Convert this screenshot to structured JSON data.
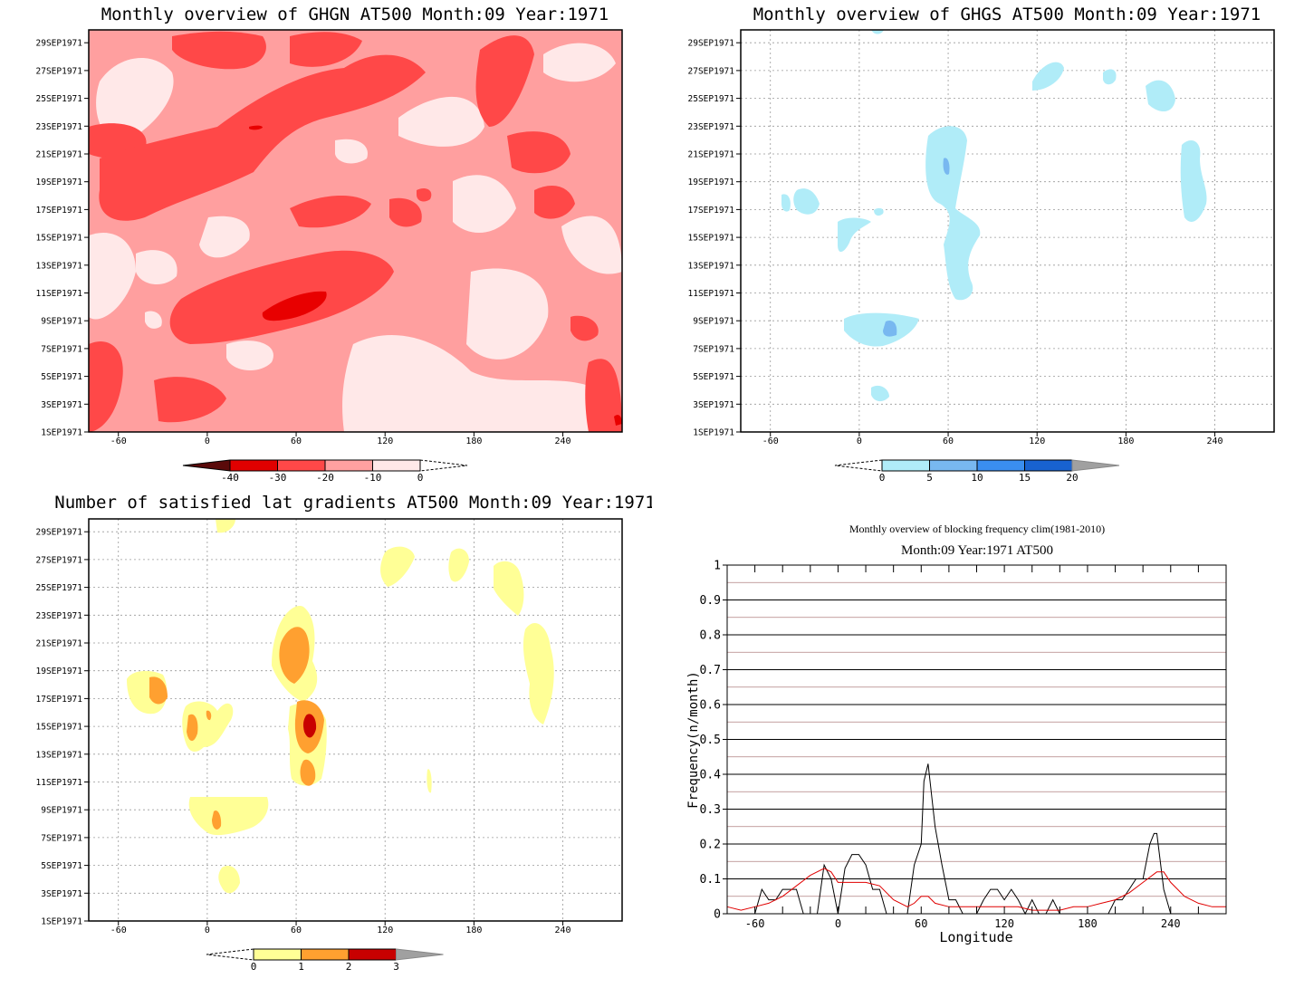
{
  "panels": {
    "ghgn": {
      "title": "Monthly overview of GHGN AT500 Month:09 Year:1971",
      "colorbar_labels": [
        "-40",
        "-30",
        "-20",
        "-10",
        "0"
      ],
      "colors": [
        "#5a0a0a",
        "#e00000",
        "#ff4848",
        "#ffa0a0",
        "#ffe8e8"
      ],
      "background_color": "#ff9f9f"
    },
    "ghgs": {
      "title": "Monthly overview of GHGS AT500 Month:09 Year:1971",
      "colorbar_labels": [
        "0",
        "5",
        "10",
        "15",
        "20"
      ],
      "colors": [
        "#b0ecf8",
        "#78b8f0",
        "#3a8ef0",
        "#1862d0",
        "#a0a0a0"
      ]
    },
    "grad": {
      "title": "Number of satisfied lat gradients AT500 Month:09 Year:1971",
      "colorbar_labels": [
        "0",
        "1",
        "2",
        "3"
      ],
      "colors": [
        "#ffff96",
        "#ffa030",
        "#c80000",
        "#a0a0a0"
      ]
    },
    "freq": {
      "title": "Monthly overview of blocking frequency clim(1981-2010)",
      "subtitle": "Month:09 Year:1971  AT500",
      "xlabel": "Longitude",
      "ylabel": "Frequency(n/month)"
    }
  },
  "axes": {
    "x_ticks": [
      "-60",
      "0",
      "60",
      "120",
      "180",
      "240"
    ],
    "y_ticks": [
      "1SEP1971",
      "3SEP1971",
      "5SEP1971",
      "7SEP1971",
      "9SEP1971",
      "11SEP1971",
      "13SEP1971",
      "15SEP1971",
      "17SEP1971",
      "19SEP1971",
      "21SEP1971",
      "23SEP1971",
      "25SEP1971",
      "27SEP1971",
      "29SEP1971"
    ]
  },
  "chart_data": [
    {
      "type": "heatmap",
      "title": "Monthly overview of GHGN AT500 Month:09 Year:1971",
      "xlim": [
        -80,
        280
      ],
      "x_ticks": [
        -60,
        0,
        60,
        120,
        180,
        240
      ],
      "y_ticks": [
        "1SEP1971",
        "3SEP1971",
        "5SEP1971",
        "7SEP1971",
        "9SEP1971",
        "11SEP1971",
        "13SEP1971",
        "15SEP1971",
        "17SEP1971",
        "19SEP1971",
        "21SEP1971",
        "23SEP1971",
        "25SEP1971",
        "27SEP1971",
        "29SEP1971"
      ],
      "levels": [
        -40,
        -30,
        -20,
        -10,
        0
      ]
    },
    {
      "type": "heatmap",
      "title": "Monthly overview of GHGS AT500 Month:09 Year:1971",
      "xlim": [
        -80,
        280
      ],
      "x_ticks": [
        -60,
        0,
        60,
        120,
        180,
        240
      ],
      "levels": [
        0,
        5,
        10,
        15,
        20
      ]
    },
    {
      "type": "heatmap",
      "title": "Number of satisfied lat gradients AT500 Month:09 Year:1971",
      "xlim": [
        -80,
        280
      ],
      "x_ticks": [
        -60,
        0,
        60,
        120,
        180,
        240
      ],
      "levels": [
        0,
        1,
        2,
        3
      ]
    },
    {
      "type": "line",
      "title": "Monthly overview of blocking frequency clim(1981-2010)",
      "subtitle": "Month:09 Year:1971  AT500",
      "xlabel": "Longitude",
      "ylabel": "Frequency(n/month)",
      "xlim": [
        -80,
        280
      ],
      "ylim": [
        0,
        1
      ],
      "x_ticks": [
        -60,
        0,
        60,
        120,
        180,
        240
      ],
      "y_ticks": [
        "0",
        "0.1",
        "0.2",
        "0.3",
        "0.4",
        "0.5",
        "0.6",
        "0.7",
        "0.8",
        "0.9",
        "1"
      ],
      "grid": true,
      "series": [
        {
          "color": "#000000",
          "x": [
            -80,
            -60,
            -55,
            -50,
            -45,
            -40,
            -30,
            -25,
            -20,
            -15,
            -10,
            -5,
            0,
            5,
            10,
            15,
            20,
            25,
            30,
            35,
            40,
            45,
            50,
            55,
            60,
            62,
            65,
            70,
            75,
            80,
            85,
            90,
            95,
            100,
            105,
            110,
            115,
            120,
            125,
            130,
            135,
            140,
            145,
            150,
            155,
            160,
            165,
            170,
            175,
            180,
            185,
            190,
            195,
            200,
            205,
            210,
            215,
            220,
            225,
            228,
            230,
            235,
            240,
            245,
            250,
            260,
            270,
            280
          ],
          "y": [
            0,
            0,
            0.07,
            0.04,
            0.04,
            0.07,
            0.07,
            0,
            0,
            0,
            0.14,
            0.1,
            0,
            0.13,
            0.17,
            0.17,
            0.14,
            0.07,
            0.07,
            0,
            0,
            0,
            0,
            0.14,
            0.2,
            0.38,
            0.43,
            0.25,
            0.14,
            0.04,
            0.04,
            0,
            0,
            0,
            0.04,
            0.07,
            0.07,
            0.04,
            0.07,
            0.04,
            0,
            0.04,
            0,
            0,
            0.04,
            0,
            0,
            0,
            0,
            0,
            0,
            0,
            0,
            0.04,
            0.04,
            0.07,
            0.1,
            0.1,
            0.2,
            0.23,
            0.23,
            0.07,
            0,
            0,
            0,
            0,
            0,
            0
          ]
        },
        {
          "color": "#e00000",
          "x": [
            -80,
            -70,
            -60,
            -50,
            -40,
            -30,
            -20,
            -10,
            -5,
            0,
            10,
            20,
            30,
            40,
            50,
            55,
            60,
            65,
            70,
            80,
            90,
            100,
            110,
            120,
            130,
            140,
            150,
            160,
            170,
            180,
            190,
            200,
            210,
            220,
            230,
            235,
            240,
            250,
            260,
            270,
            280
          ],
          "y": [
            0.02,
            0.01,
            0.02,
            0.03,
            0.05,
            0.08,
            0.11,
            0.13,
            0.12,
            0.09,
            0.09,
            0.09,
            0.08,
            0.04,
            0.02,
            0.03,
            0.05,
            0.05,
            0.03,
            0.02,
            0.02,
            0.02,
            0.02,
            0.02,
            0.02,
            0.01,
            0.01,
            0.01,
            0.02,
            0.02,
            0.03,
            0.04,
            0.06,
            0.09,
            0.12,
            0.12,
            0.09,
            0.05,
            0.03,
            0.02,
            0.02
          ]
        }
      ]
    }
  ]
}
